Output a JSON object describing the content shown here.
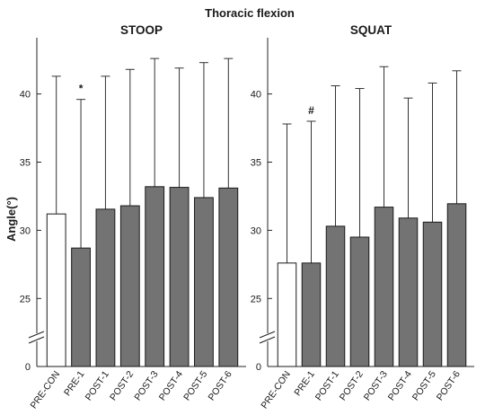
{
  "chart_data": {
    "title": "Thoracic flexion",
    "ylabel": "Angle(°)",
    "yticks": [
      0,
      25,
      30,
      35,
      40
    ],
    "axis_break": true,
    "colors": {
      "control_bar": "#ffffff",
      "test_bar": "#737373",
      "bar_edge": "#1a1a1a",
      "error_bar": "#333333"
    },
    "panels": [
      {
        "type": "bar",
        "title": "STOOP",
        "categories": [
          "PRE-CON",
          "PRE-1",
          "POST-1",
          "POST-2",
          "POST-3",
          "POST-4",
          "POST-5",
          "POST-6"
        ],
        "values": [
          31.2,
          28.7,
          31.55,
          31.8,
          33.2,
          33.15,
          32.4,
          33.1
        ],
        "error_upper": [
          41.3,
          39.6,
          41.3,
          41.8,
          42.6,
          41.9,
          42.3,
          42.6
        ],
        "annotations": [
          {
            "category": "PRE-1",
            "text": "*"
          }
        ]
      },
      {
        "type": "bar",
        "title": "SQUAT",
        "categories": [
          "PRE-CON",
          "PRE-1",
          "POST-1",
          "POST-2",
          "POST-3",
          "POST-4",
          "POST-5",
          "POST-6"
        ],
        "values": [
          27.6,
          27.6,
          30.3,
          29.5,
          31.7,
          30.9,
          30.6,
          31.95
        ],
        "error_upper": [
          37.8,
          38.0,
          40.6,
          40.4,
          42.0,
          39.7,
          40.8,
          41.7
        ],
        "annotations": [
          {
            "category": "PRE-1",
            "text": "#"
          }
        ]
      }
    ]
  }
}
